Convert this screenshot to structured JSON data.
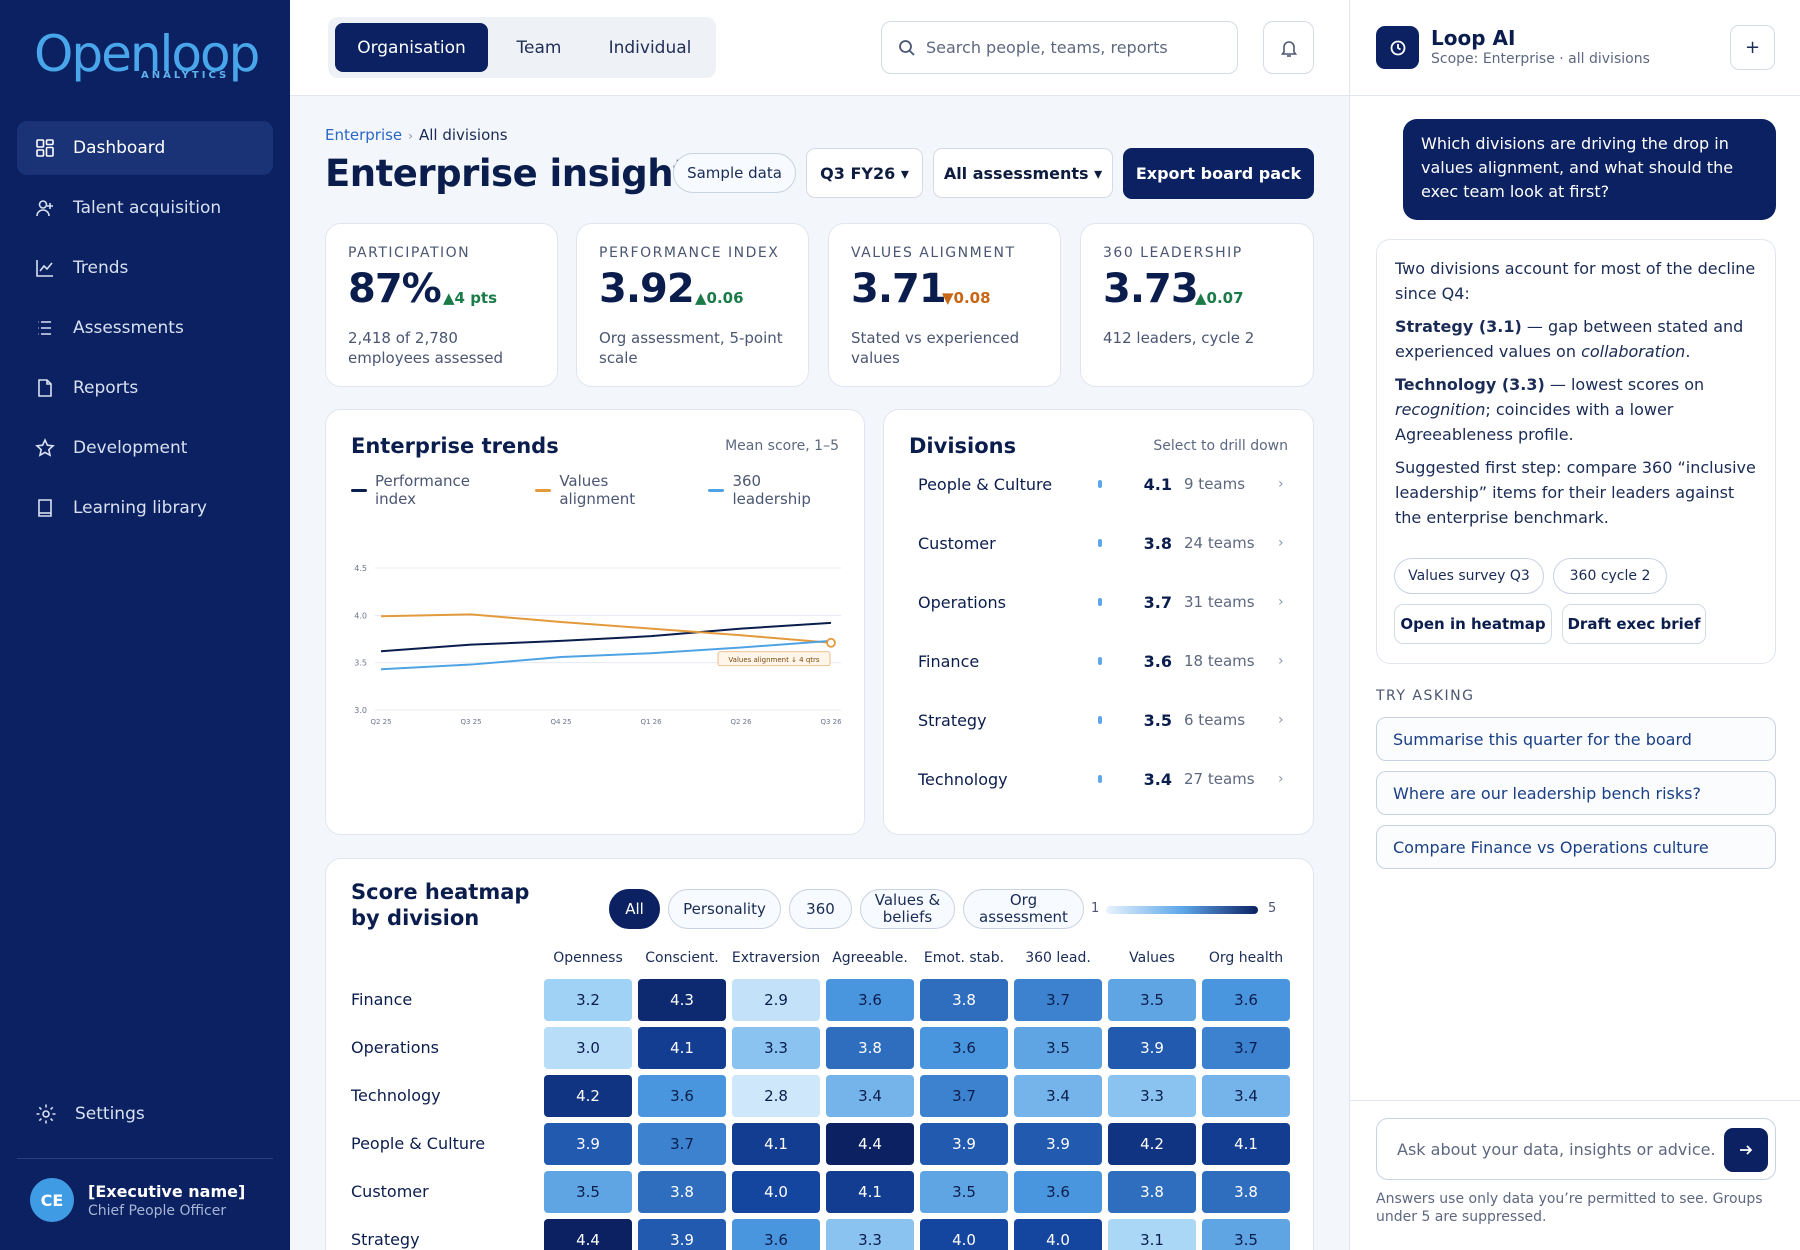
{
  "brand": {
    "logo_text": "Openloop",
    "logo_sub": "ANALYTICS"
  },
  "sidebar": {
    "items": [
      {
        "label": "Dashboard",
        "icon": "grid-icon"
      },
      {
        "label": "Talent acquisition",
        "icon": "user-plus-icon"
      },
      {
        "label": "Trends",
        "icon": "line-chart-icon"
      },
      {
        "label": "Assessments",
        "icon": "list-icon"
      },
      {
        "label": "Reports",
        "icon": "file-icon"
      },
      {
        "label": "Development",
        "icon": "star-icon"
      },
      {
        "label": "Learning library",
        "icon": "book-icon"
      }
    ],
    "settings_label": "Settings",
    "user": {
      "initials": "CE",
      "name": "[Executive name]",
      "role": "Chief People Officer"
    }
  },
  "topbar": {
    "tabs": [
      "Organisation",
      "Team",
      "Individual"
    ],
    "search_placeholder": "Search people, teams, reports"
  },
  "header": {
    "breadcrumb": [
      "Enterprise",
      "All divisions"
    ],
    "title": "Enterprise insights",
    "sample_label": "Sample data",
    "period": "Q3 FY26 ▾",
    "assessment_filter": "All assessments ▾",
    "export_label": "Export board pack"
  },
  "kpis": [
    {
      "label": "PARTICIPATION",
      "value": "87%",
      "delta": "▲4 pts",
      "dir": "up",
      "sub": "2,418 of 2,780 employees assessed"
    },
    {
      "label": "PERFORMANCE INDEX",
      "value": "3.92",
      "delta": "▲0.06",
      "dir": "up",
      "sub": "Org assessment, 5-point scale"
    },
    {
      "label": "VALUES ALIGNMENT",
      "value": "3.71",
      "delta": "▼0.08",
      "dir": "down",
      "sub": "Stated vs experienced values"
    },
    {
      "label": "360 LEADERSHIP",
      "value": "3.73",
      "delta": "▲0.07",
      "dir": "up",
      "sub": "412 leaders, cycle 2"
    }
  ],
  "trends": {
    "title": "Enterprise trends",
    "meta": "Mean score, 1–5",
    "annotation": "Values alignment ↓ 4 qtrs",
    "colors": {
      "performance": "#0b1d4d",
      "values": "#e39a3b",
      "leadership": "#4fa3e4"
    }
  },
  "chart_data": {
    "type": "line",
    "x": [
      "Q2 25",
      "Q3 25",
      "Q4 25",
      "Q1 26",
      "Q2 26",
      "Q3 26"
    ],
    "series": [
      {
        "name": "Performance index",
        "values": [
          3.62,
          3.69,
          3.73,
          3.78,
          3.86,
          3.92
        ]
      },
      {
        "name": "Values alignment",
        "values": [
          3.99,
          4.01,
          3.93,
          3.86,
          3.79,
          3.71
        ]
      },
      {
        "name": "360 leadership",
        "values": [
          3.43,
          3.48,
          3.56,
          3.6,
          3.66,
          3.73
        ]
      }
    ],
    "yticks": [
      "4.5",
      "4.0",
      "3.5",
      "3.0"
    ],
    "ylim": [
      3.0,
      4.5
    ],
    "grid": true,
    "legend": "top-left"
  },
  "divisions": {
    "title": "Divisions",
    "meta": "Select to drill down",
    "rows": [
      {
        "name": "People & Culture",
        "score": "4.1",
        "teams": "9 teams"
      },
      {
        "name": "Customer",
        "score": "3.8",
        "teams": "24 teams"
      },
      {
        "name": "Operations",
        "score": "3.7",
        "teams": "31 teams"
      },
      {
        "name": "Finance",
        "score": "3.6",
        "teams": "18 teams"
      },
      {
        "name": "Strategy",
        "score": "3.5",
        "teams": "6 teams"
      },
      {
        "name": "Technology",
        "score": "3.4",
        "teams": "27 teams"
      }
    ]
  },
  "heatmap": {
    "title": "Score heatmap by division",
    "filters": [
      "All",
      "Personality",
      "360",
      "Values & beliefs",
      "Org assessment"
    ],
    "scale_min": "1",
    "scale_max": "5",
    "columns": [
      "Openness",
      "Conscient.",
      "Extraversion",
      "Agreeable.",
      "Emot. stab.",
      "360 lead.",
      "Values",
      "Org health"
    ],
    "rows": [
      {
        "name": "Finance",
        "values": [
          "3.2",
          "4.3",
          "2.9",
          "3.6",
          "3.8",
          "3.7",
          "3.5",
          "3.6"
        ]
      },
      {
        "name": "Operations",
        "values": [
          "3.0",
          "4.1",
          "3.3",
          "3.8",
          "3.6",
          "3.5",
          "3.9",
          "3.7"
        ]
      },
      {
        "name": "Technology",
        "values": [
          "4.2",
          "3.6",
          "2.8",
          "3.4",
          "3.7",
          "3.4",
          "3.3",
          "3.4"
        ]
      },
      {
        "name": "People & Culture",
        "values": [
          "3.9",
          "3.7",
          "4.1",
          "4.4",
          "3.9",
          "3.9",
          "4.2",
          "4.1"
        ]
      },
      {
        "name": "Customer",
        "values": [
          "3.5",
          "3.8",
          "4.0",
          "4.1",
          "3.5",
          "3.6",
          "3.8",
          "3.8"
        ]
      },
      {
        "name": "Strategy",
        "values": [
          "4.4",
          "3.9",
          "3.6",
          "3.3",
          "4.0",
          "4.0",
          "3.1",
          "3.5"
        ]
      }
    ]
  },
  "ai": {
    "name": "Loop AI",
    "scope": "Scope: Enterprise · all divisions",
    "question": "Which divisions are driving the drop in values alignment, and what should the exec team look at first?",
    "answer": {
      "intro": "Two divisions account for most of the decline since Q4:",
      "p1_bold": "Strategy (3.1)",
      "p1_text": " — gap between stated and experienced values on ",
      "p1_em": "collaboration",
      "p1_end": ".",
      "p2_bold": "Technology (3.3)",
      "p2_text": " — lowest scores on ",
      "p2_em": "recognition",
      "p2_end": "; coincides with a lower Agreeableness profile.",
      "p3": "Suggested first step: compare 360 “inclusive leadership” items for their leaders against the enterprise benchmark."
    },
    "sources": [
      "Values survey Q3",
      "360 cycle 2"
    ],
    "actions": [
      "Open in heatmap",
      "Draft exec brief"
    ],
    "try_label": "TRY ASKING",
    "suggestions": [
      "Summarise this quarter for the board",
      "Where are our leadership bench risks?",
      "Compare Finance vs Operations culture"
    ],
    "input_placeholder": "Ask about your data, insights or advice...",
    "note": "Answers use only data you’re permitted to see. Groups under 5 are suppressed."
  }
}
